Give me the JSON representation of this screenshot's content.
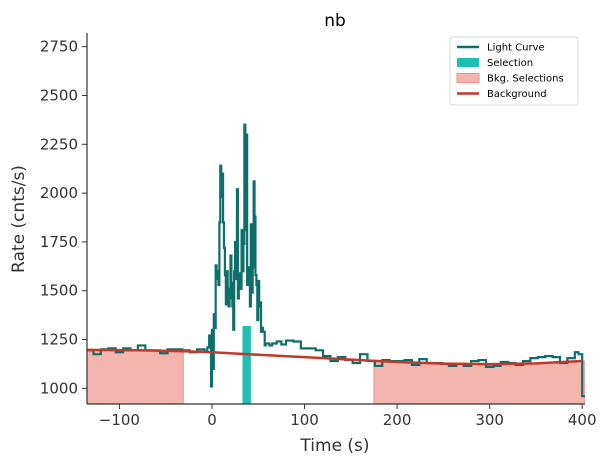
{
  "chart_data": {
    "type": "line",
    "title": "nb",
    "xlabel": "Time (s)",
    "ylabel": "Rate (cnts/s)",
    "xlim": [
      -135,
      403
    ],
    "ylim": [
      920,
      2820
    ],
    "xticks": [
      -100,
      0,
      100,
      200,
      300,
      400
    ],
    "xtick_labels": [
      "−100",
      "0",
      "100",
      "200",
      "300",
      "400"
    ],
    "yticks": [
      1000,
      1250,
      1500,
      1750,
      2000,
      2250,
      2500,
      2750
    ],
    "ytick_labels": [
      "1000",
      "1250",
      "1500",
      "1750",
      "2000",
      "2250",
      "2500",
      "2750"
    ],
    "grid": false,
    "legend_placement": "top-right",
    "colors": {
      "light_curve": "#0e6e6b",
      "selection": "#1fbfb3",
      "bkg_fill": "#f4b5ae",
      "bkg_edge": "#e6968d",
      "background": "#c0392b",
      "axis": "#333333"
    },
    "legend": [
      {
        "label": "Light Curve",
        "kind": "line",
        "color_key": "light_curve"
      },
      {
        "label": "Selection",
        "kind": "patch",
        "color_key": "selection"
      },
      {
        "label": "Bkg. Selections",
        "kind": "patch",
        "color_key": "bkg_fill"
      },
      {
        "label": "Background",
        "kind": "line",
        "color_key": "background"
      }
    ],
    "bkg_selections": [
      [
        -135,
        -31
      ],
      [
        175,
        403
      ]
    ],
    "selection": [
      33,
      42
    ],
    "background": {
      "x": [
        -135,
        -80,
        -30,
        0,
        50,
        100,
        150,
        200,
        250,
        300,
        350,
        400
      ],
      "y": [
        1197,
        1195,
        1190,
        1185,
        1172,
        1160,
        1147,
        1135,
        1127,
        1124,
        1128,
        1140
      ]
    },
    "light_curve": {
      "name": "Light Curve",
      "x": [
        -135,
        -128,
        -120,
        -112,
        -104,
        -96,
        -88,
        -80,
        -72,
        -64,
        -56,
        -48,
        -40,
        -32,
        -24,
        -16,
        -8,
        -5,
        -3,
        -1,
        0,
        1,
        2,
        3,
        4,
        5,
        6,
        7,
        8,
        9,
        10,
        11,
        12,
        13,
        14,
        15,
        16,
        17,
        18,
        19,
        20,
        21,
        22,
        23,
        24,
        25,
        26,
        27,
        28,
        29,
        30,
        31,
        32,
        33,
        34,
        35,
        36,
        37,
        38,
        39,
        40,
        41,
        42,
        43,
        44,
        45,
        46,
        47,
        48,
        49,
        50,
        51,
        52,
        53,
        54,
        55,
        56,
        57,
        58,
        60,
        62,
        65,
        70,
        75,
        80,
        88,
        96,
        104,
        112,
        120,
        128,
        136,
        144,
        152,
        160,
        168,
        176,
        184,
        192,
        200,
        208,
        216,
        224,
        232,
        240,
        248,
        256,
        264,
        272,
        280,
        288,
        296,
        304,
        312,
        320,
        328,
        336,
        344,
        352,
        360,
        368,
        376,
        384,
        392,
        396,
        400,
        403
      ],
      "y": [
        1195,
        1175,
        1200,
        1205,
        1185,
        1205,
        1195,
        1220,
        1195,
        1195,
        1180,
        1200,
        1200,
        1195,
        1185,
        1200,
        1190,
        1210,
        1270,
        1010,
        1300,
        1100,
        1380,
        1310,
        1630,
        1560,
        1600,
        1530,
        1850,
        2140,
        1980,
        2100,
        1850,
        1720,
        1580,
        1430,
        1600,
        1510,
        1420,
        1460,
        1680,
        1540,
        1420,
        1300,
        1600,
        1750,
        1560,
        2020,
        1460,
        1520,
        1590,
        1510,
        1810,
        1600,
        1740,
        2350,
        1810,
        2300,
        1530,
        1560,
        1620,
        1420,
        1840,
        1490,
        1620,
        2060,
        1880,
        1580,
        1530,
        1350,
        1550,
        1420,
        1440,
        1290,
        1310,
        1290,
        1290,
        1220,
        1230,
        1230,
        1220,
        1230,
        1240,
        1225,
        1245,
        1240,
        1205,
        1205,
        1195,
        1165,
        1140,
        1160,
        1145,
        1130,
        1175,
        1140,
        1115,
        1145,
        1140,
        1140,
        1145,
        1120,
        1150,
        1130,
        1130,
        1125,
        1115,
        1125,
        1115,
        1140,
        1145,
        1110,
        1115,
        1135,
        1130,
        1120,
        1140,
        1155,
        1160,
        1165,
        1160,
        1130,
        1155,
        1185,
        1175,
        960,
        960
      ]
    }
  }
}
